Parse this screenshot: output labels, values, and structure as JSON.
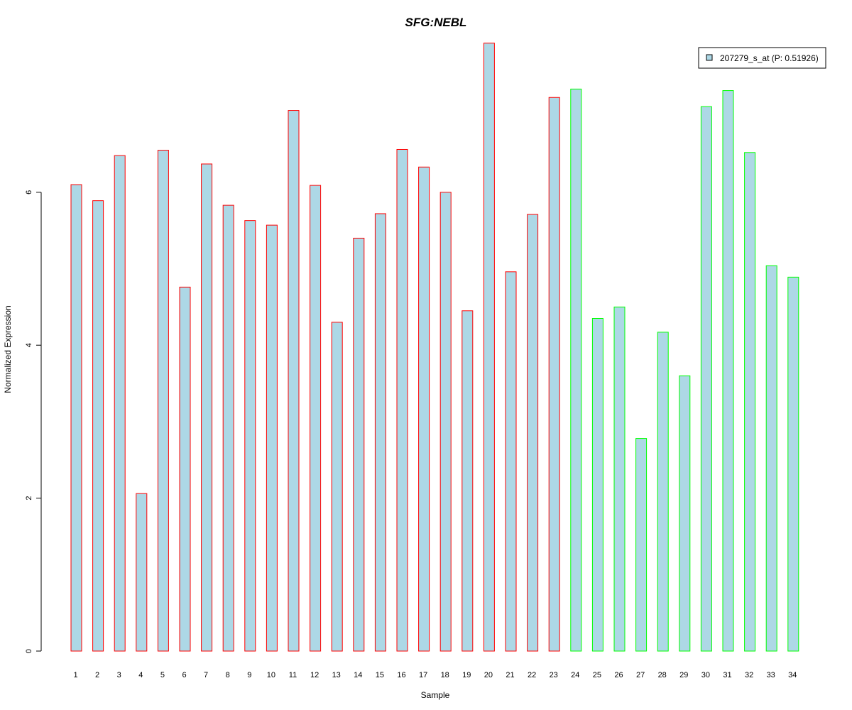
{
  "chart_data": {
    "type": "bar",
    "title": "SFG:NEBL",
    "title_color": "#0000CC",
    "xlabel": "Sample",
    "ylabel": "Normalized Expression",
    "ylim": [
      0,
      7.95
    ],
    "yticks": [
      0,
      2,
      4,
      6
    ],
    "legend": {
      "position": "top-right",
      "label": "207279_s_at (P: 0.51926)",
      "fill": "#ADD8E6"
    },
    "bar_fill": "#ADD8E6",
    "group_colors": {
      "group1": "#FF0000",
      "group2": "#00FF00"
    },
    "categories": [
      "1",
      "2",
      "3",
      "4",
      "5",
      "6",
      "7",
      "8",
      "9",
      "10",
      "11",
      "12",
      "13",
      "14",
      "15",
      "16",
      "17",
      "18",
      "19",
      "20",
      "21",
      "22",
      "23",
      "24",
      "25",
      "26",
      "27",
      "28",
      "29",
      "30",
      "31",
      "32",
      "33",
      "34"
    ],
    "values": [
      6.1,
      5.89,
      6.48,
      2.06,
      6.55,
      4.76,
      6.37,
      5.83,
      5.63,
      5.57,
      7.07,
      6.09,
      4.3,
      5.4,
      5.72,
      6.56,
      6.33,
      6.0,
      4.45,
      7.95,
      4.96,
      5.71,
      7.24,
      7.35,
      4.35,
      4.5,
      2.78,
      4.17,
      3.6,
      7.12,
      7.33,
      6.52,
      5.04,
      4.89
    ],
    "groups": [
      "group1",
      "group1",
      "group1",
      "group1",
      "group1",
      "group1",
      "group1",
      "group1",
      "group1",
      "group1",
      "group1",
      "group1",
      "group1",
      "group1",
      "group1",
      "group1",
      "group1",
      "group1",
      "group1",
      "group1",
      "group1",
      "group1",
      "group1",
      "group2",
      "group2",
      "group2",
      "group2",
      "group2",
      "group2",
      "group2",
      "group2",
      "group2",
      "group2",
      "group2"
    ],
    "grid": false
  }
}
